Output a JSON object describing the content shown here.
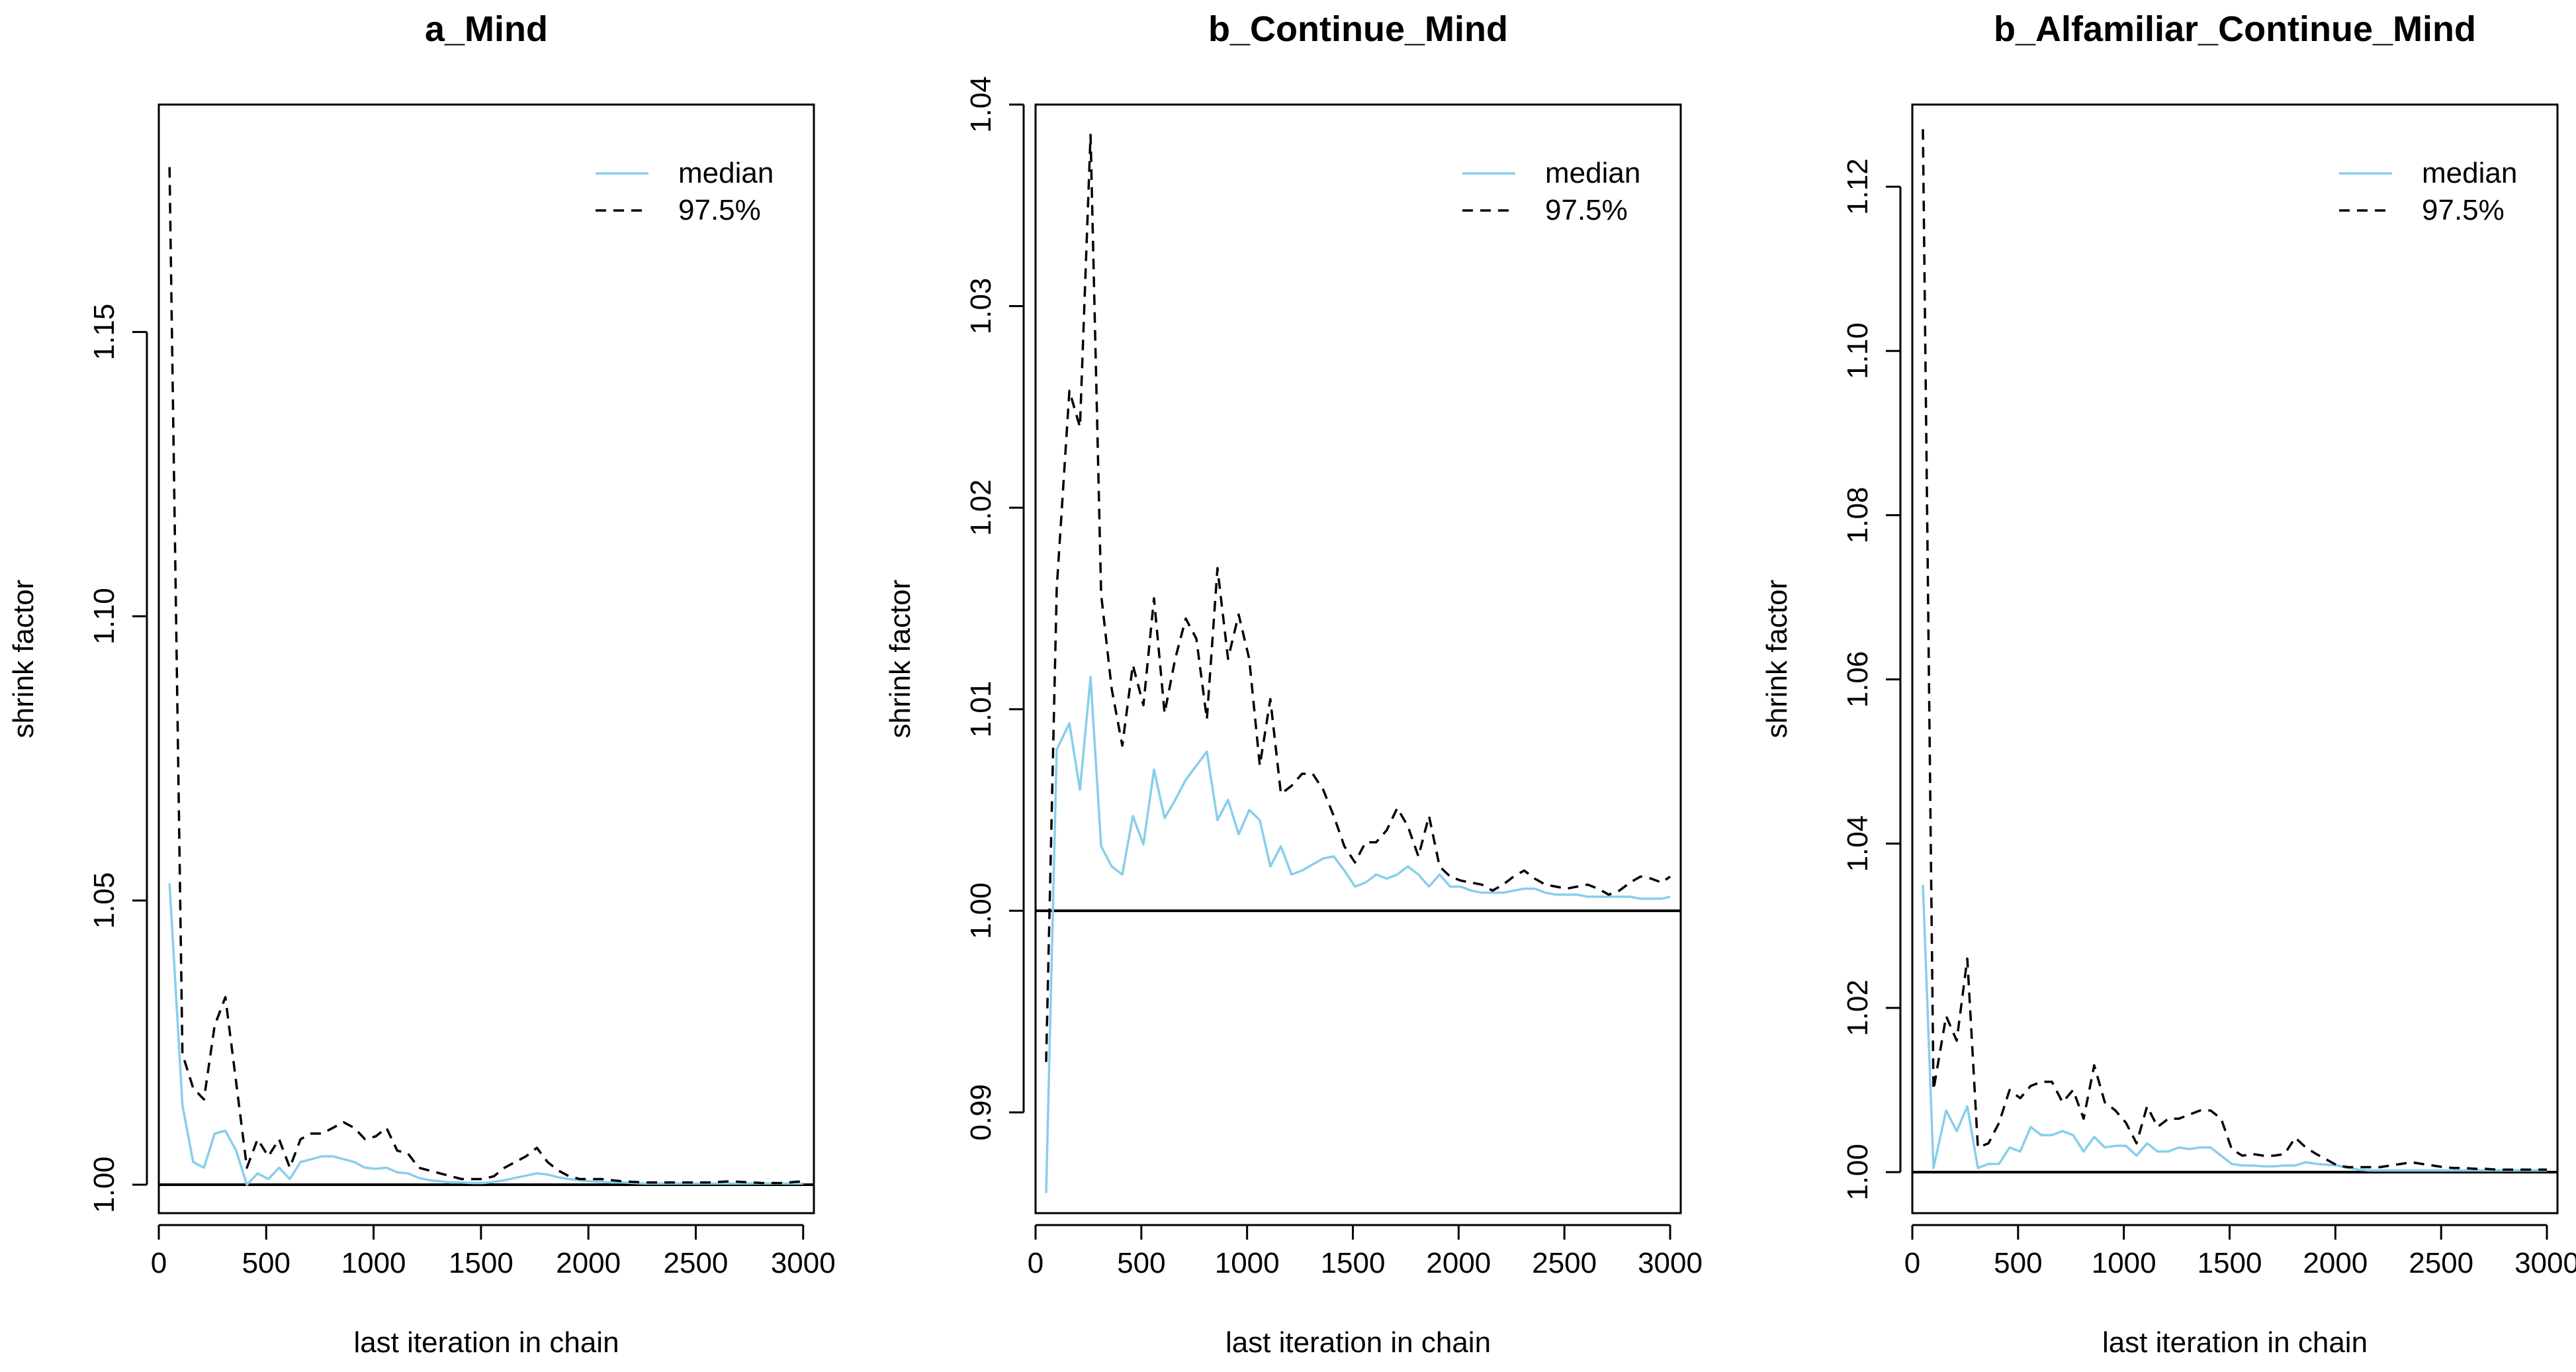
{
  "colors": {
    "median": "#87ceeb",
    "q975": "#000000",
    "reference": "#000000",
    "axis": "#000000"
  },
  "chart_data": [
    {
      "type": "line",
      "title": "a_Mind",
      "xlabel": "last iteration in chain",
      "ylabel": "shrink factor",
      "xlim": [
        0,
        3050
      ],
      "ylim": [
        0.995,
        1.19
      ],
      "xticks": [
        0,
        500,
        1000,
        1500,
        2000,
        2500,
        3000
      ],
      "xtick_labels": [
        "0",
        "500",
        "1000",
        "1500",
        "2000",
        "2500",
        "3000"
      ],
      "yticks": [
        1.0,
        1.05,
        1.1,
        1.15
      ],
      "ytick_labels": [
        "1.00",
        "1.05",
        "1.10",
        "1.15"
      ],
      "reference_line": 1.0,
      "legend": {
        "position": "top-right",
        "entries": [
          "median",
          "97.5%"
        ]
      },
      "x": [
        50,
        110,
        160,
        210,
        260,
        310,
        360,
        410,
        460,
        510,
        560,
        610,
        660,
        710,
        760,
        810,
        860,
        910,
        960,
        1010,
        1060,
        1110,
        1160,
        1210,
        1260,
        1310,
        1360,
        1410,
        1460,
        1510,
        1560,
        1610,
        1660,
        1710,
        1760,
        1810,
        1860,
        1910,
        1960,
        2010,
        2060,
        2110,
        2160,
        2210,
        2260,
        2310,
        2360,
        2410,
        2460,
        2510,
        2560,
        2610,
        2660,
        2710,
        2760,
        2810,
        2860,
        2910,
        2960,
        3000
      ],
      "series": [
        {
          "name": "median",
          "values": [
            1.053,
            1.014,
            1.004,
            1.003,
            1.009,
            1.0095,
            1.006,
            1.0,
            1.002,
            1.001,
            1.003,
            1.001,
            1.004,
            1.0045,
            1.005,
            1.005,
            1.0045,
            1.004,
            1.003,
            1.0028,
            1.003,
            1.0022,
            1.002,
            1.0012,
            1.0008,
            1.0006,
            1.0004,
            1.0004,
            1.0003,
            1.0003,
            1.0005,
            1.0008,
            1.0012,
            1.0016,
            1.002,
            1.0018,
            1.0013,
            1.001,
            1.0008,
            1.0006,
            1.0005,
            1.0004,
            1.0004,
            1.0003,
            1.0002,
            1.0002,
            1.0002,
            1.0002,
            1.0002,
            1.0002,
            1.0002,
            1.0002,
            1.0002,
            1.0002,
            1.0002,
            1.0002,
            1.0002,
            1.0002,
            1.0002,
            1.0002
          ]
        },
        {
          "name": "97.5%",
          "values": [
            1.179,
            1.023,
            1.017,
            1.015,
            1.028,
            1.033,
            1.018,
            1.003,
            1.008,
            1.005,
            1.008,
            1.003,
            1.008,
            1.009,
            1.009,
            1.01,
            1.011,
            1.01,
            1.008,
            1.0085,
            1.01,
            1.006,
            1.0055,
            1.003,
            1.0025,
            1.002,
            1.0015,
            1.001,
            1.001,
            1.001,
            1.0015,
            1.003,
            1.004,
            1.005,
            1.0065,
            1.004,
            1.0025,
            1.0015,
            1.001,
            1.001,
            1.001,
            1.0008,
            1.0006,
            1.0005,
            1.0004,
            1.0004,
            1.0004,
            1.0004,
            1.0004,
            1.0004,
            1.0004,
            1.0005,
            1.0006,
            1.0005,
            1.0004,
            1.0003,
            1.0003,
            1.0003,
            1.0005,
            1.0006
          ]
        }
      ]
    },
    {
      "type": "line",
      "title": "b_Continue_Mind",
      "xlabel": "last iteration in chain",
      "ylabel": "shrink factor",
      "xlim": [
        0,
        3050
      ],
      "ylim": [
        0.985,
        1.04
      ],
      "xticks": [
        0,
        500,
        1000,
        1500,
        2000,
        2500,
        3000
      ],
      "xtick_labels": [
        "0",
        "500",
        "1000",
        "1500",
        "2000",
        "2500",
        "3000"
      ],
      "yticks": [
        0.99,
        1.0,
        1.01,
        1.02,
        1.03,
        1.04
      ],
      "ytick_labels": [
        "0.99",
        "1.00",
        "1.01",
        "1.02",
        "1.03",
        "1.04"
      ],
      "reference_line": 1.0,
      "legend": {
        "position": "top-right",
        "entries": [
          "median",
          "97.5%"
        ]
      },
      "x": [
        50,
        100,
        160,
        210,
        260,
        310,
        360,
        410,
        460,
        510,
        560,
        610,
        660,
        710,
        760,
        810,
        860,
        910,
        960,
        1010,
        1060,
        1110,
        1160,
        1210,
        1260,
        1310,
        1360,
        1410,
        1460,
        1510,
        1560,
        1610,
        1660,
        1710,
        1760,
        1810,
        1860,
        1910,
        1960,
        2010,
        2060,
        2110,
        2160,
        2210,
        2260,
        2310,
        2360,
        2410,
        2460,
        2510,
        2560,
        2610,
        2660,
        2710,
        2760,
        2810,
        2860,
        2910,
        2960,
        3000
      ],
      "series": [
        {
          "name": "median",
          "values": [
            0.986,
            1.008,
            1.0093,
            1.006,
            1.0116,
            1.0032,
            1.0022,
            1.0018,
            1.0047,
            1.0033,
            1.007,
            1.0046,
            1.0055,
            1.0065,
            1.0072,
            1.0079,
            1.0045,
            1.0055,
            1.0038,
            1.005,
            1.0045,
            1.0022,
            1.0032,
            1.0018,
            1.002,
            1.0023,
            1.0026,
            1.0027,
            1.002,
            1.0012,
            1.0014,
            1.0018,
            1.0016,
            1.0018,
            1.0022,
            1.0018,
            1.0012,
            1.0018,
            1.0012,
            1.0012,
            1.001,
            1.0009,
            1.0009,
            1.0009,
            1.001,
            1.0011,
            1.0011,
            1.0009,
            1.0008,
            1.0008,
            1.0008,
            1.0007,
            1.0007,
            1.0007,
            1.0007,
            1.0007,
            1.0006,
            1.0006,
            1.0006,
            1.0007
          ]
        },
        {
          "name": "97.5%",
          "values": [
            0.9925,
            1.016,
            1.0258,
            1.024,
            1.0385,
            1.0157,
            1.011,
            1.0082,
            1.0122,
            1.0102,
            1.0155,
            1.0098,
            1.0125,
            1.0145,
            1.0135,
            1.0095,
            1.017,
            1.0125,
            1.0147,
            1.0125,
            1.0072,
            1.0105,
            1.0058,
            1.0062,
            1.0068,
            1.0068,
            1.006,
            1.0047,
            1.0032,
            1.0024,
            1.0034,
            1.0034,
            1.004,
            1.0051,
            1.0042,
            1.0027,
            1.0047,
            1.0022,
            1.0017,
            1.0015,
            1.0014,
            1.0013,
            1.001,
            1.0013,
            1.0017,
            1.002,
            1.0016,
            1.0013,
            1.0012,
            1.0011,
            1.0012,
            1.0013,
            1.0011,
            1.0008,
            1.001,
            1.0014,
            1.0017,
            1.0016,
            1.0014,
            1.0017
          ]
        }
      ]
    },
    {
      "type": "line",
      "title": "b_Alfamiliar_Continue_Mind",
      "xlabel": "last iteration in chain",
      "ylabel": "shrink factor",
      "xlim": [
        0,
        3050
      ],
      "ylim": [
        0.995,
        1.13
      ],
      "xticks": [
        0,
        500,
        1000,
        1500,
        2000,
        2500,
        3000
      ],
      "xtick_labels": [
        "0",
        "500",
        "1000",
        "1500",
        "2000",
        "2500",
        "3000"
      ],
      "yticks": [
        1.0,
        1.02,
        1.04,
        1.06,
        1.08,
        1.1,
        1.12
      ],
      "ytick_labels": [
        "1.00",
        "1.02",
        "1.04",
        "1.06",
        "1.08",
        "1.10",
        "1.12"
      ],
      "reference_line": 1.0,
      "legend": {
        "position": "top-right",
        "entries": [
          "median",
          "97.5%"
        ]
      },
      "x": [
        50,
        100,
        160,
        210,
        260,
        310,
        360,
        410,
        460,
        510,
        560,
        610,
        660,
        710,
        760,
        810,
        860,
        910,
        960,
        1010,
        1060,
        1110,
        1160,
        1210,
        1260,
        1310,
        1360,
        1410,
        1460,
        1510,
        1560,
        1610,
        1660,
        1710,
        1760,
        1810,
        1860,
        1910,
        1960,
        2010,
        2060,
        2110,
        2160,
        2210,
        2260,
        2310,
        2360,
        2410,
        2460,
        2510,
        2560,
        2610,
        2660,
        2710,
        2760,
        2810,
        2860,
        2910,
        2960,
        3000
      ],
      "series": [
        {
          "name": "median",
          "values": [
            1.035,
            1.0005,
            1.0075,
            1.005,
            1.008,
            1.0005,
            1.001,
            1.001,
            1.003,
            1.0025,
            1.0055,
            1.0045,
            1.0045,
            1.005,
            1.0045,
            1.0025,
            1.0043,
            1.003,
            1.0032,
            1.0032,
            1.002,
            1.0035,
            1.0025,
            1.0025,
            1.003,
            1.0028,
            1.003,
            1.003,
            1.002,
            1.001,
            1.0008,
            1.0008,
            1.0007,
            1.0007,
            1.0008,
            1.0008,
            1.0012,
            1.001,
            1.0009,
            1.0008,
            1.0005,
            1.0003,
            1.0002,
            1.0002,
            1.0002,
            1.0002,
            1.0002,
            1.0002,
            1.0002,
            1.0002,
            1.0002,
            1.0002,
            1.0002,
            1.0002,
            1.0002,
            1.0002,
            1.0002,
            1.0002,
            1.0002,
            1.0002
          ]
        },
        {
          "name": "97.5%",
          "values": [
            1.127,
            1.01,
            1.019,
            1.016,
            1.026,
            1.003,
            1.0035,
            1.006,
            1.01,
            1.009,
            1.0105,
            1.011,
            1.011,
            1.0085,
            1.01,
            1.0065,
            1.013,
            1.0085,
            1.0075,
            1.006,
            1.0035,
            1.008,
            1.0055,
            1.0065,
            1.0065,
            1.007,
            1.0075,
            1.0075,
            1.0065,
            1.0028,
            1.002,
            1.0022,
            1.002,
            1.002,
            1.0022,
            1.0042,
            1.003,
            1.0022,
            1.0015,
            1.0008,
            1.0006,
            1.0006,
            1.0006,
            1.0006,
            1.0008,
            1.001,
            1.0012,
            1.001,
            1.0008,
            1.0006,
            1.0005,
            1.0005,
            1.0004,
            1.0004,
            1.0003,
            1.0003,
            1.0003,
            1.0003,
            1.0003,
            1.0003
          ]
        }
      ]
    }
  ]
}
